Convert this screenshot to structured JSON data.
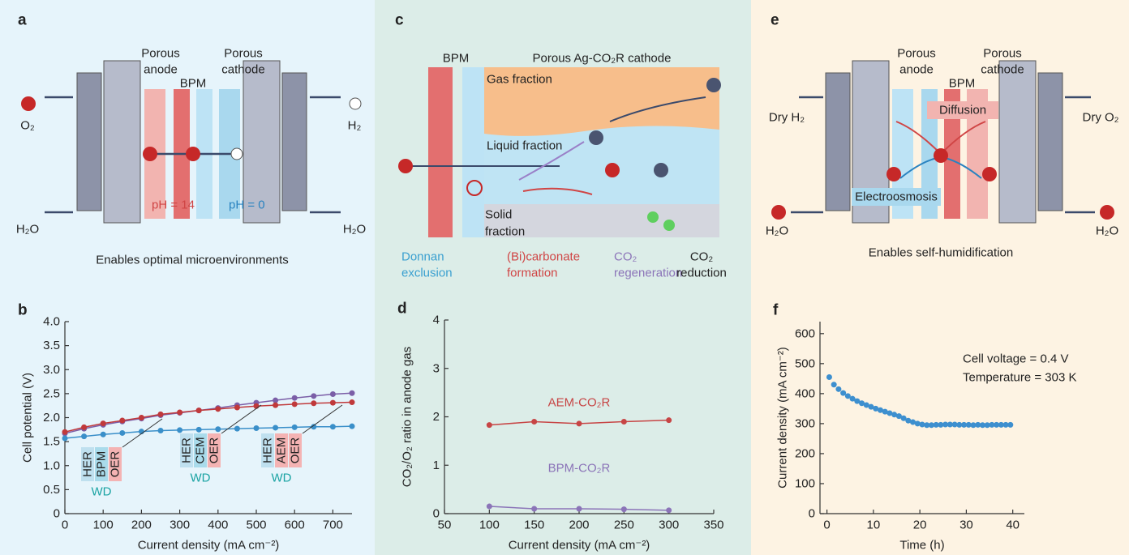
{
  "panels": {
    "a": {
      "label": "a",
      "anode": [
        "Porous",
        "anode"
      ],
      "bpm": "BPM",
      "cathode": [
        "Porous",
        "cathode"
      ],
      "o2": "O₂",
      "h2": "H₂",
      "h2o_left": "H₂O",
      "h2o_right": "H₂O",
      "ph_left": "pH = 14",
      "ph_right": "pH = 0",
      "caption": "Enables optimal microenvironments"
    },
    "c": {
      "label": "c",
      "bpm": "BPM",
      "cathode": "Porous Ag-CO₂R cathode",
      "gas": "Gas fraction",
      "liquid": "Liquid fraction",
      "solid": [
        "Solid",
        "fraction"
      ],
      "donnan": [
        "Donnan",
        "exclusion"
      ],
      "carbonate": [
        "(Bi)carbonate",
        "formation"
      ],
      "regeneration": [
        "CO₂",
        "regeneration"
      ],
      "reduction": [
        "CO₂",
        "reduction"
      ]
    },
    "e": {
      "label": "e",
      "anode": [
        "Porous",
        "anode"
      ],
      "bpm": "BPM",
      "cathode": [
        "Porous",
        "cathode"
      ],
      "dry_h2": "Dry H₂",
      "dry_o2": "Dry O₂",
      "diffusion": "Diffusion",
      "electroosmosis": "Electroosmosis",
      "h2o_left": "H₂O",
      "h2o_right": "H₂O",
      "caption": "Enables self-humidification"
    }
  },
  "chart_data": [
    {
      "type": "line",
      "label": "b",
      "x_label": "Current density (mA cm⁻²)",
      "y_label": "Cell potential (V)",
      "x": [
        0,
        50,
        100,
        150,
        200,
        250,
        300,
        350,
        400,
        450,
        500,
        550,
        600,
        650,
        700,
        750
      ],
      "series": [
        {
          "color": "#7b5ea7",
          "values": [
            1.67,
            1.77,
            1.85,
            1.92,
            1.98,
            2.05,
            2.1,
            2.15,
            2.2,
            2.26,
            2.31,
            2.36,
            2.41,
            2.45,
            2.49,
            2.51
          ]
        },
        {
          "color": "#c0393b",
          "values": [
            1.7,
            1.8,
            1.88,
            1.94,
            2.0,
            2.07,
            2.11,
            2.15,
            2.18,
            2.21,
            2.24,
            2.26,
            2.28,
            2.3,
            2.31,
            2.32
          ]
        },
        {
          "color": "#3a8fc9",
          "values": [
            1.57,
            1.61,
            1.65,
            1.68,
            1.71,
            1.73,
            1.74,
            1.75,
            1.76,
            1.77,
            1.78,
            1.79,
            1.8,
            1.81,
            1.81,
            1.82
          ]
        }
      ],
      "annotations": [
        {
          "parts": [
            "HER",
            "BPM",
            "OER"
          ],
          "note": "WD"
        },
        {
          "parts": [
            "HER",
            "CEM",
            "OER"
          ],
          "note": "WD"
        },
        {
          "parts": [
            "HER",
            "AEM",
            "OER"
          ],
          "note": "WD"
        }
      ],
      "xlim": [
        0,
        750
      ],
      "xticks": [
        0,
        100,
        200,
        300,
        400,
        500,
        600,
        700
      ],
      "ylim": [
        0,
        4
      ],
      "yticks": [
        0,
        0.5,
        {
          "value": 1,
          "label": "1.0"
        },
        1.5,
        {
          "value": 2,
          "label": "2.0"
        },
        2.5,
        {
          "value": 3,
          "label": "3.0"
        },
        3.5,
        {
          "value": 4,
          "label": "4.0"
        }
      ]
    },
    {
      "type": "line",
      "label": "d",
      "x_label": "Current density (mA cm⁻²)",
      "y_label": "CO₂/O₂ ratio in anode gas",
      "x": [
        100,
        150,
        200,
        250,
        300
      ],
      "series": [
        {
          "name": "AEM-CO₂R",
          "color": "#c74545",
          "values": [
            1.83,
            1.9,
            1.86,
            1.9,
            1.93
          ]
        },
        {
          "name": "BPM-CO₂R",
          "color": "#8b74b8",
          "values": [
            0.15,
            0.1,
            0.1,
            0.09,
            0.07
          ]
        }
      ],
      "xlim": [
        50,
        350
      ],
      "xticks": [
        50,
        100,
        150,
        200,
        250,
        300,
        350
      ],
      "ylim": [
        0,
        4
      ],
      "yticks": [
        0,
        1,
        2,
        3,
        4
      ]
    },
    {
      "type": "scatter",
      "label": "f",
      "x_label": "Time (h)",
      "y_label": "Current density (mA cm⁻²)",
      "x": [
        0.5,
        1.5,
        2.5,
        3.5,
        4.5,
        5.5,
        6.5,
        7.5,
        8.5,
        9.5,
        10.5,
        11.5,
        12.5,
        13.5,
        14.5,
        15.5,
        16.5,
        17.5,
        18.5,
        19.5,
        20.5,
        21.5,
        22.5,
        23.5,
        24.5,
        25.5,
        26.5,
        27.5,
        28.5,
        29.5,
        30.5,
        31.5,
        32.5,
        33.5,
        34.5,
        35.5,
        36.5,
        37.5,
        38.5,
        39.5
      ],
      "series": [
        {
          "color": "#3d8fcf",
          "values": [
            455,
            430,
            415,
            402,
            392,
            383,
            375,
            368,
            362,
            356,
            350,
            345,
            340,
            335,
            330,
            325,
            318,
            310,
            305,
            300,
            297,
            295,
            295,
            296,
            296,
            297,
            297,
            297,
            296,
            296,
            296,
            295,
            296,
            295,
            295,
            296,
            296,
            296,
            296,
            296
          ]
        }
      ],
      "annotations": [
        "Cell voltage = 0.4 V",
        "Temperature = 303 K"
      ],
      "xlim": [
        -1.5,
        42.5
      ],
      "xticks": [
        0,
        10,
        20,
        30,
        40
      ],
      "ylim": [
        0,
        640
      ],
      "yticks": [
        0,
        100,
        200,
        300,
        400,
        500,
        600
      ]
    }
  ]
}
